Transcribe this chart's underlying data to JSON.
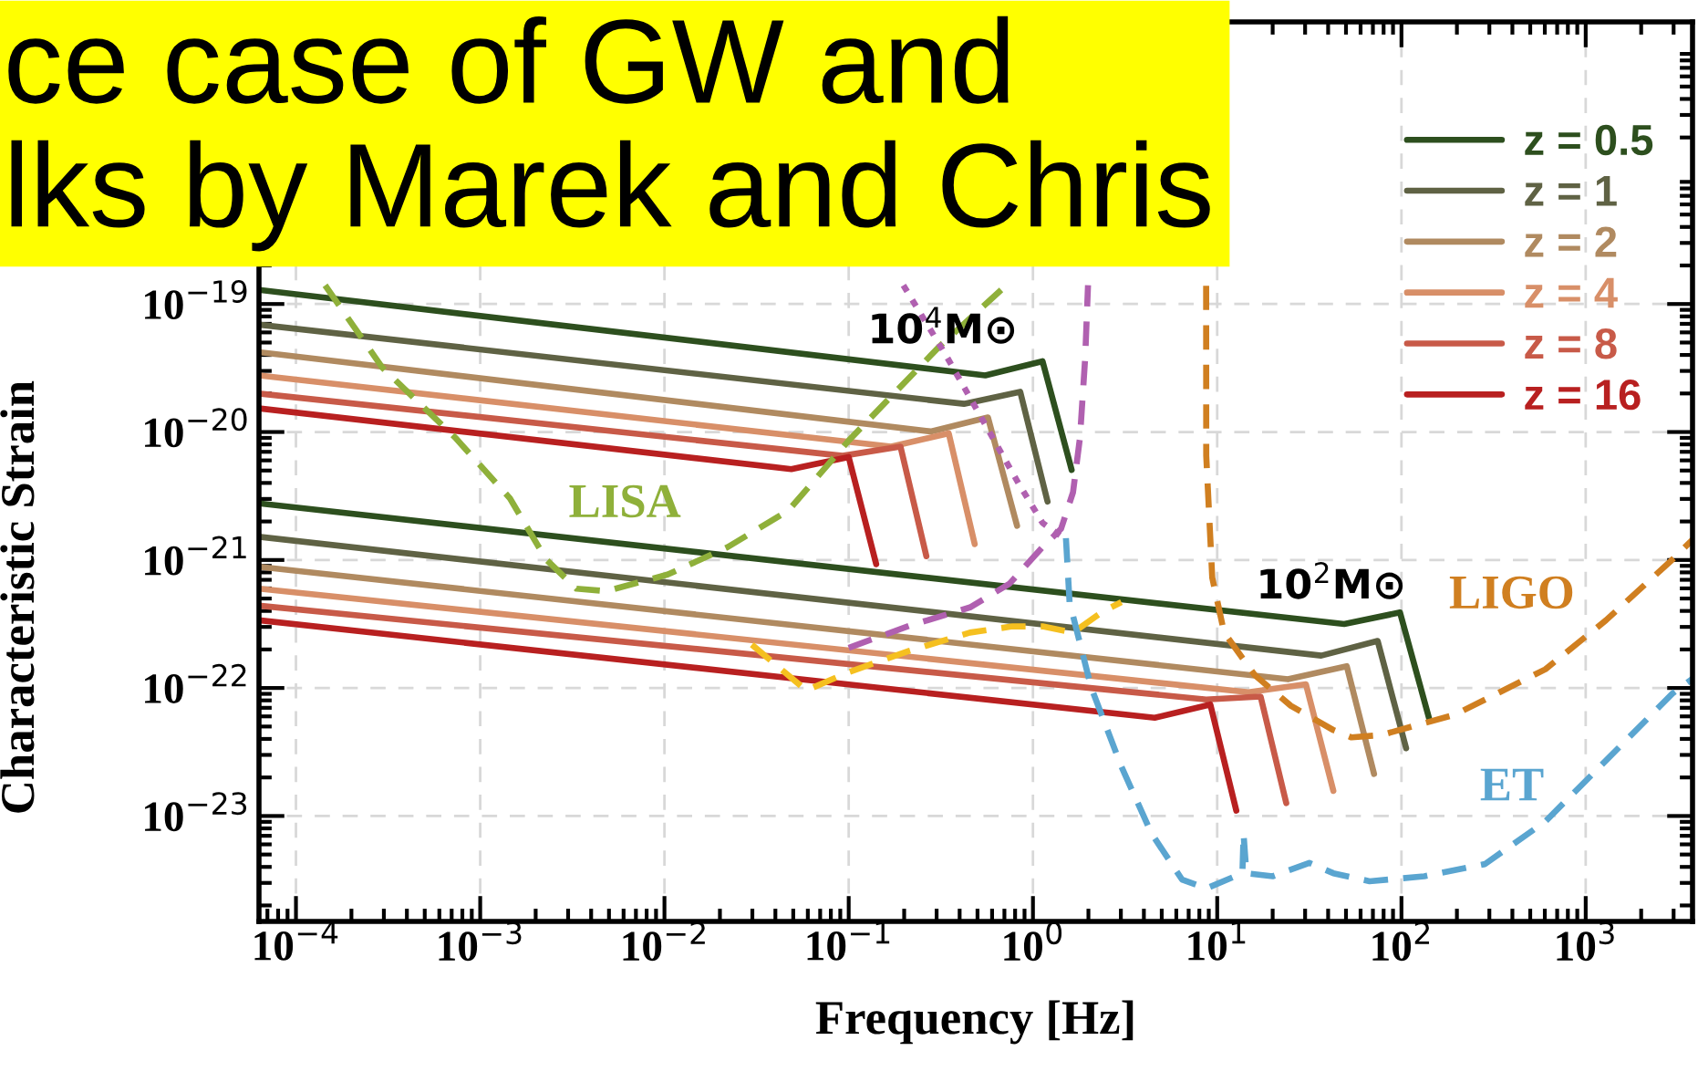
{
  "chart_data": {
    "type": "line",
    "xlabel": "Frequency [Hz]",
    "ylabel": "Characteristic Strain",
    "log": "xy",
    "grid": true,
    "legend": "top right",
    "xlim": [
      6.3e-05,
      3800
    ],
    "ylim": [
      1.5e-24,
      1.6e-17
    ],
    "xticks": [
      {
        "value": 0.0001,
        "label": "10$^{−4}$"
      },
      {
        "value": 0.001,
        "label": "10$^{−3}$"
      },
      {
        "value": 0.01,
        "label": "10$^{−2}$"
      },
      {
        "value": 0.1,
        "label": "10$^{−1}$"
      },
      {
        "value": 1,
        "label": "10$^{0}$"
      },
      {
        "value": 10,
        "label": "10$^{1}$"
      },
      {
        "value": 100,
        "label": "10$^{2}$"
      },
      {
        "value": 1000,
        "label": "10$^{3}$"
      }
    ],
    "yticks": [
      {
        "value": 1e-23,
        "label": "10$^{−23}$"
      },
      {
        "value": 1e-22,
        "label": "10$^{−22}$"
      },
      {
        "value": 1e-21,
        "label": "10$^{−21}$"
      },
      {
        "value": 1e-20,
        "label": "10$^{−20}$"
      },
      {
        "value": 1e-19,
        "label": "10$^{−19}$"
      }
    ],
    "annotations": [
      "ce case of GW and\nlks by Marek and Chris",
      "10$^{4}$M⊙",
      "10$^{2}$M⊙"
    ],
    "series": [
      {
        "name": "z = 0.5",
        "color": "#2d4f1e",
        "line_style": "solid",
        "x": [
          6.3e-05,
          0.551,
          1.127,
          1.622
        ],
        "values": [
          1.29e-19,
          2.77e-20,
          3.57e-20,
          5.06e-21
        ]
      },
      {
        "name": "z = 1",
        "color": "#5f6244",
        "line_style": "solid",
        "x": [
          6.3e-05,
          0.422,
          0.853,
          1.2
        ],
        "values": [
          6.9e-20,
          1.66e-20,
          2.06e-20,
          2.86e-21
        ]
      },
      {
        "name": "z = 2",
        "color": "#b08a60",
        "line_style": "solid",
        "x": [
          6.3e-05,
          0.279,
          0.57,
          0.82
        ],
        "values": [
          4.21e-20,
          1.01e-20,
          1.3e-20,
          1.85e-21
        ]
      },
      {
        "name": "z = 4",
        "color": "#d88f68",
        "line_style": "solid",
        "x": [
          6.3e-05,
          0.17,
          0.349,
          0.483
        ],
        "values": [
          2.77e-20,
          7.69e-21,
          9.77e-21,
          1.33e-21
        ]
      },
      {
        "name": "z = 8",
        "color": "#c85a48",
        "line_style": "solid",
        "x": [
          6.3e-05,
          0.0927,
          0.191,
          0.264
        ],
        "values": [
          2e-20,
          6.52e-21,
          7.69e-21,
          1.07e-21
        ]
      },
      {
        "name": "z = 16",
        "color": "#b82020",
        "line_style": "solid",
        "x": [
          6.3e-05,
          0.0488,
          0.1,
          0.141
        ],
        "values": [
          1.53e-20,
          5.13e-21,
          6.37e-21,
          9.27e-22
        ]
      },
      {
        "color": "#2d4f1e",
        "line_style": "solid",
        "x": [
          6.3e-05,
          48.9,
          98.2,
          141
        ],
        "values": [
          2.77e-21,
          3.16e-22,
          3.89e-22,
          5.85e-23
        ]
      },
      {
        "color": "#5f6244",
        "line_style": "solid",
        "x": [
          6.3e-05,
          36.7,
          74.3,
          106
        ],
        "values": [
          1.52e-21,
          1.79e-22,
          2.33e-22,
          3.38e-23
        ]
      },
      {
        "color": "#b08a60",
        "line_style": "solid",
        "x": [
          6.3e-05,
          24.2,
          50.5,
          71.0
        ],
        "values": [
          8.85e-22,
          1.17e-22,
          1.48e-22,
          2.13e-23
        ]
      },
      {
        "color": "#d88f68",
        "line_style": "solid",
        "x": [
          6.3e-05,
          14.8,
          30.3,
          42.7
        ],
        "values": [
          5.97e-22,
          9.27e-23,
          1.07e-22,
          1.57e-23
        ]
      },
      {
        "color": "#c85a48",
        "line_style": "solid",
        "x": [
          6.3e-05,
          8.71,
          17.2,
          23.7
        ],
        "values": [
          4.4e-22,
          8.13e-23,
          8.57e-23,
          1.26e-23
        ]
      },
      {
        "color": "#b82020",
        "line_style": "solid",
        "x": [
          6.3e-05,
          4.58,
          9.18,
          12.7
        ],
        "values": [
          3.38e-22,
          5.85e-23,
          7.43e-23,
          1.1e-23
        ]
      },
      {
        "name": "LISA",
        "color": "#8fb03a",
        "line_style": "dashed",
        "x": [
          0.000144,
          0.000294,
          0.000731,
          0.00145,
          0.00228,
          0.00333,
          0.00484,
          0.0104,
          0.022,
          0.047,
          0.1,
          0.312,
          0.716
        ],
        "values": [
          1.4e-19,
          3.19e-20,
          9.06e-21,
          3.03e-21,
          1.01e-21,
          5.97e-22,
          5.71e-22,
          7.69e-22,
          1.26e-21,
          2.43e-21,
          8.57e-21,
          4.69e-20,
          1.4e-19
        ]
      },
      {
        "color": "#b060b0",
        "line_style": "dashed",
        "x": [
          0.1,
          0.213,
          0.455,
          0.745,
          1.127,
          1.42,
          1.65,
          1.8,
          1.92,
          1.99
        ],
        "values": [
          2.06e-22,
          3.06e-22,
          4.26e-22,
          6.52e-22,
          1.26e-21,
          1.75e-21,
          3.38e-21,
          9.06e-21,
          3.77e-20,
          1.4e-19
        ]
      },
      {
        "color": "#b060b0",
        "line_style": "dotted",
        "x": [
          0.198,
          0.337,
          0.53,
          0.834,
          1.127,
          1.47
        ],
        "values": [
          1.4e-19,
          3.98e-20,
          1.26e-20,
          3.98e-21,
          1.95e-21,
          1.48e-21
        ]
      },
      {
        "color": "#f5c020",
        "line_style": "dashed",
        "x": [
          0.0298,
          0.0589,
          0.1,
          0.213,
          0.455,
          0.774,
          1.127,
          1.65,
          2.41,
          3.02
        ],
        "values": [
          2.18e-22,
          9.57e-23,
          1.33e-22,
          1.95e-22,
          2.71e-22,
          3.03e-22,
          3.03e-22,
          2.71e-22,
          3.98e-22,
          4.69e-22
        ]
      },
      {
        "name": "LIGO",
        "color": "#d07f20",
        "line_style": "dashed",
        "x": [
          8.71,
          8.72,
          9.4,
          10.9,
          16.0,
          25.1,
          42.7,
          53.6,
          78.2,
          194,
          604,
          1288,
          2958,
          3800
        ],
        "values": [
          1.39e-19,
          6.52e-21,
          7.26e-22,
          2.71e-22,
          1.26e-22,
          7.26e-23,
          4.69e-23,
          4.11e-23,
          4.3e-23,
          6.17e-23,
          1.4e-22,
          3.38e-22,
          1.01e-21,
          1.44e-21
        ]
      },
      {
        "name": "ET",
        "color": "#5aa5d0",
        "line_style": "dashed",
        "x": [
          1.51,
          1.58,
          2.07,
          3.02,
          4.41,
          6.44,
          8.71,
          13.7,
          13.9,
          14.4,
          20.0,
          31.6,
          42.7,
          67.1,
          133,
          284,
          604,
          1288,
          2958,
          3800
        ],
        "values": [
          1.48e-21,
          4.69e-22,
          1.01e-22,
          2.43e-23,
          7.26e-24,
          3.19e-24,
          2.71e-24,
          3.57e-24,
          7.26e-24,
          3.57e-24,
          3.38e-24,
          4.3e-24,
          3.57e-24,
          3.09e-24,
          3.38e-24,
          4.21e-24,
          9.06e-24,
          2.71e-23,
          9.06e-23,
          1.18e-22
        ]
      }
    ]
  }
}
